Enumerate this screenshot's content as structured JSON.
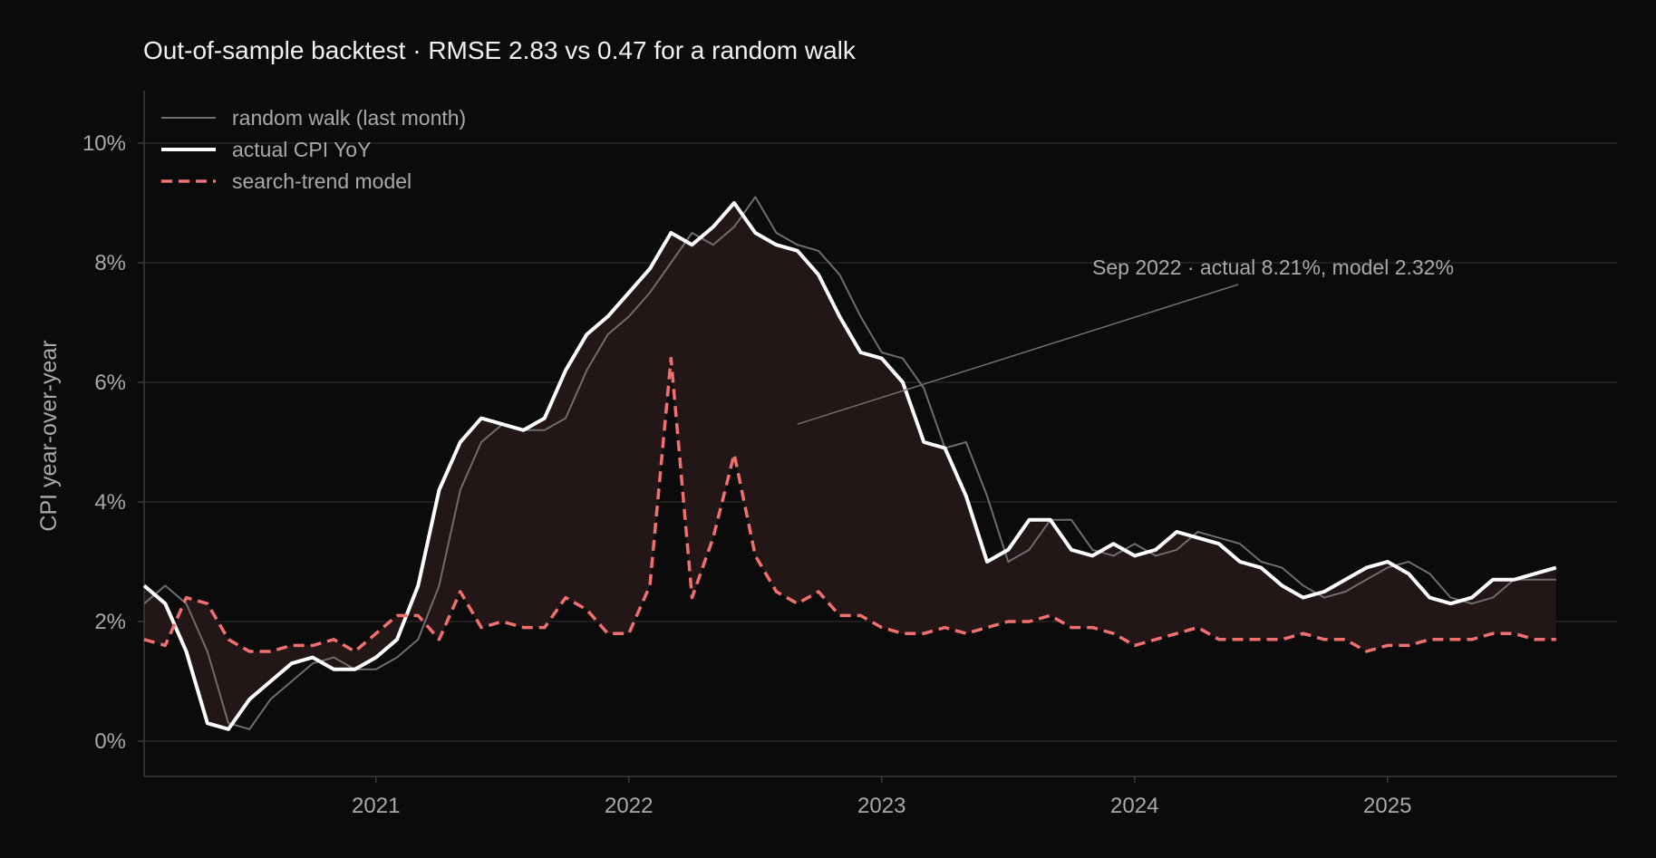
{
  "chart_data": {
    "type": "line",
    "title": "Out-of-sample backtest · RMSE 2.83 vs 0.47 for a random walk",
    "xlabel": "",
    "ylabel": "CPI year-over-year",
    "x_ticks": [
      "2021",
      "2022",
      "2023",
      "2024",
      "2025"
    ],
    "y_ticks": [
      "0%",
      "2%",
      "4%",
      "6%",
      "8%",
      "10%"
    ],
    "ylim": [
      -0.6,
      10.9
    ],
    "grid": "horizontal",
    "legend_position": "top-left",
    "colors": {
      "background": "#0b0b0b",
      "actual": "#ffffff",
      "random_walk": "#6e6e6e",
      "model": "#f07070",
      "fill": "#221616",
      "grid": "#242424"
    },
    "annotation": {
      "text": "Sep 2022  ·  actual 8.21%,  model 2.32%",
      "date": "2022-09",
      "value": 5.3
    },
    "x": [
      "2020-02",
      "2020-03",
      "2020-04",
      "2020-05",
      "2020-06",
      "2020-07",
      "2020-08",
      "2020-09",
      "2020-10",
      "2020-11",
      "2020-12",
      "2021-01",
      "2021-02",
      "2021-03",
      "2021-04",
      "2021-05",
      "2021-06",
      "2021-07",
      "2021-08",
      "2021-09",
      "2021-10",
      "2021-11",
      "2021-12",
      "2022-01",
      "2022-02",
      "2022-03",
      "2022-04",
      "2022-05",
      "2022-06",
      "2022-07",
      "2022-08",
      "2022-09",
      "2022-10",
      "2022-11",
      "2022-12",
      "2023-01",
      "2023-02",
      "2023-03",
      "2023-04",
      "2023-05",
      "2023-06",
      "2023-07",
      "2023-08",
      "2023-09",
      "2023-10",
      "2023-11",
      "2023-12",
      "2024-01",
      "2024-02",
      "2024-03",
      "2024-04",
      "2024-05",
      "2024-06",
      "2024-07",
      "2024-08",
      "2024-09",
      "2024-10",
      "2024-11",
      "2024-12",
      "2025-01",
      "2025-02",
      "2025-03",
      "2025-04",
      "2025-05",
      "2025-06",
      "2025-07",
      "2025-08",
      "2025-09"
    ],
    "series": [
      {
        "name": "random walk (last month)",
        "values": [
          2.3,
          2.6,
          2.3,
          1.5,
          0.3,
          0.2,
          0.7,
          1.0,
          1.3,
          1.4,
          1.2,
          1.2,
          1.4,
          1.7,
          2.6,
          4.2,
          5.0,
          5.3,
          5.2,
          5.2,
          5.4,
          6.2,
          6.8,
          7.1,
          7.5,
          8.0,
          8.5,
          8.3,
          8.6,
          9.1,
          8.5,
          8.3,
          8.2,
          7.8,
          7.1,
          6.5,
          6.4,
          5.9,
          4.9,
          5.0,
          4.1,
          3.0,
          3.2,
          3.7,
          3.7,
          3.2,
          3.1,
          3.3,
          3.1,
          3.2,
          3.5,
          3.4,
          3.3,
          3.0,
          2.9,
          2.6,
          2.4,
          2.5,
          2.7,
          2.9,
          3.0,
          2.8,
          2.4,
          2.3,
          2.4,
          2.7,
          2.7,
          2.7
        ]
      },
      {
        "name": "actual CPI YoY",
        "values": [
          2.6,
          2.3,
          1.5,
          0.3,
          0.2,
          0.7,
          1.0,
          1.3,
          1.4,
          1.2,
          1.2,
          1.4,
          1.7,
          2.6,
          4.2,
          5.0,
          5.4,
          5.3,
          5.2,
          5.4,
          6.2,
          6.8,
          7.1,
          7.5,
          7.9,
          8.5,
          8.3,
          8.6,
          9.0,
          8.5,
          8.3,
          8.2,
          7.8,
          7.1,
          6.5,
          6.4,
          6.0,
          5.0,
          4.9,
          4.1,
          3.0,
          3.2,
          3.7,
          3.7,
          3.2,
          3.1,
          3.3,
          3.1,
          3.2,
          3.5,
          3.4,
          3.3,
          3.0,
          2.9,
          2.6,
          2.4,
          2.5,
          2.7,
          2.9,
          3.0,
          2.8,
          2.4,
          2.3,
          2.4,
          2.7,
          2.7,
          2.8,
          2.9
        ]
      },
      {
        "name": "search-trend model",
        "values": [
          1.7,
          1.6,
          2.4,
          2.3,
          1.7,
          1.5,
          1.5,
          1.6,
          1.6,
          1.7,
          1.5,
          1.8,
          2.1,
          2.1,
          1.7,
          2.5,
          1.9,
          2.0,
          1.9,
          1.9,
          2.4,
          2.2,
          1.8,
          1.8,
          2.6,
          6.4,
          2.4,
          3.4,
          4.8,
          3.1,
          2.5,
          2.3,
          2.5,
          2.1,
          2.1,
          1.9,
          1.8,
          1.8,
          1.9,
          1.8,
          1.9,
          2.0,
          2.0,
          2.1,
          1.9,
          1.9,
          1.8,
          1.6,
          1.7,
          1.8,
          1.9,
          1.7,
          1.7,
          1.7,
          1.7,
          1.8,
          1.7,
          1.7,
          1.5,
          1.6,
          1.6,
          1.7,
          1.7,
          1.7,
          1.8,
          1.8,
          1.7,
          1.7
        ]
      }
    ]
  }
}
